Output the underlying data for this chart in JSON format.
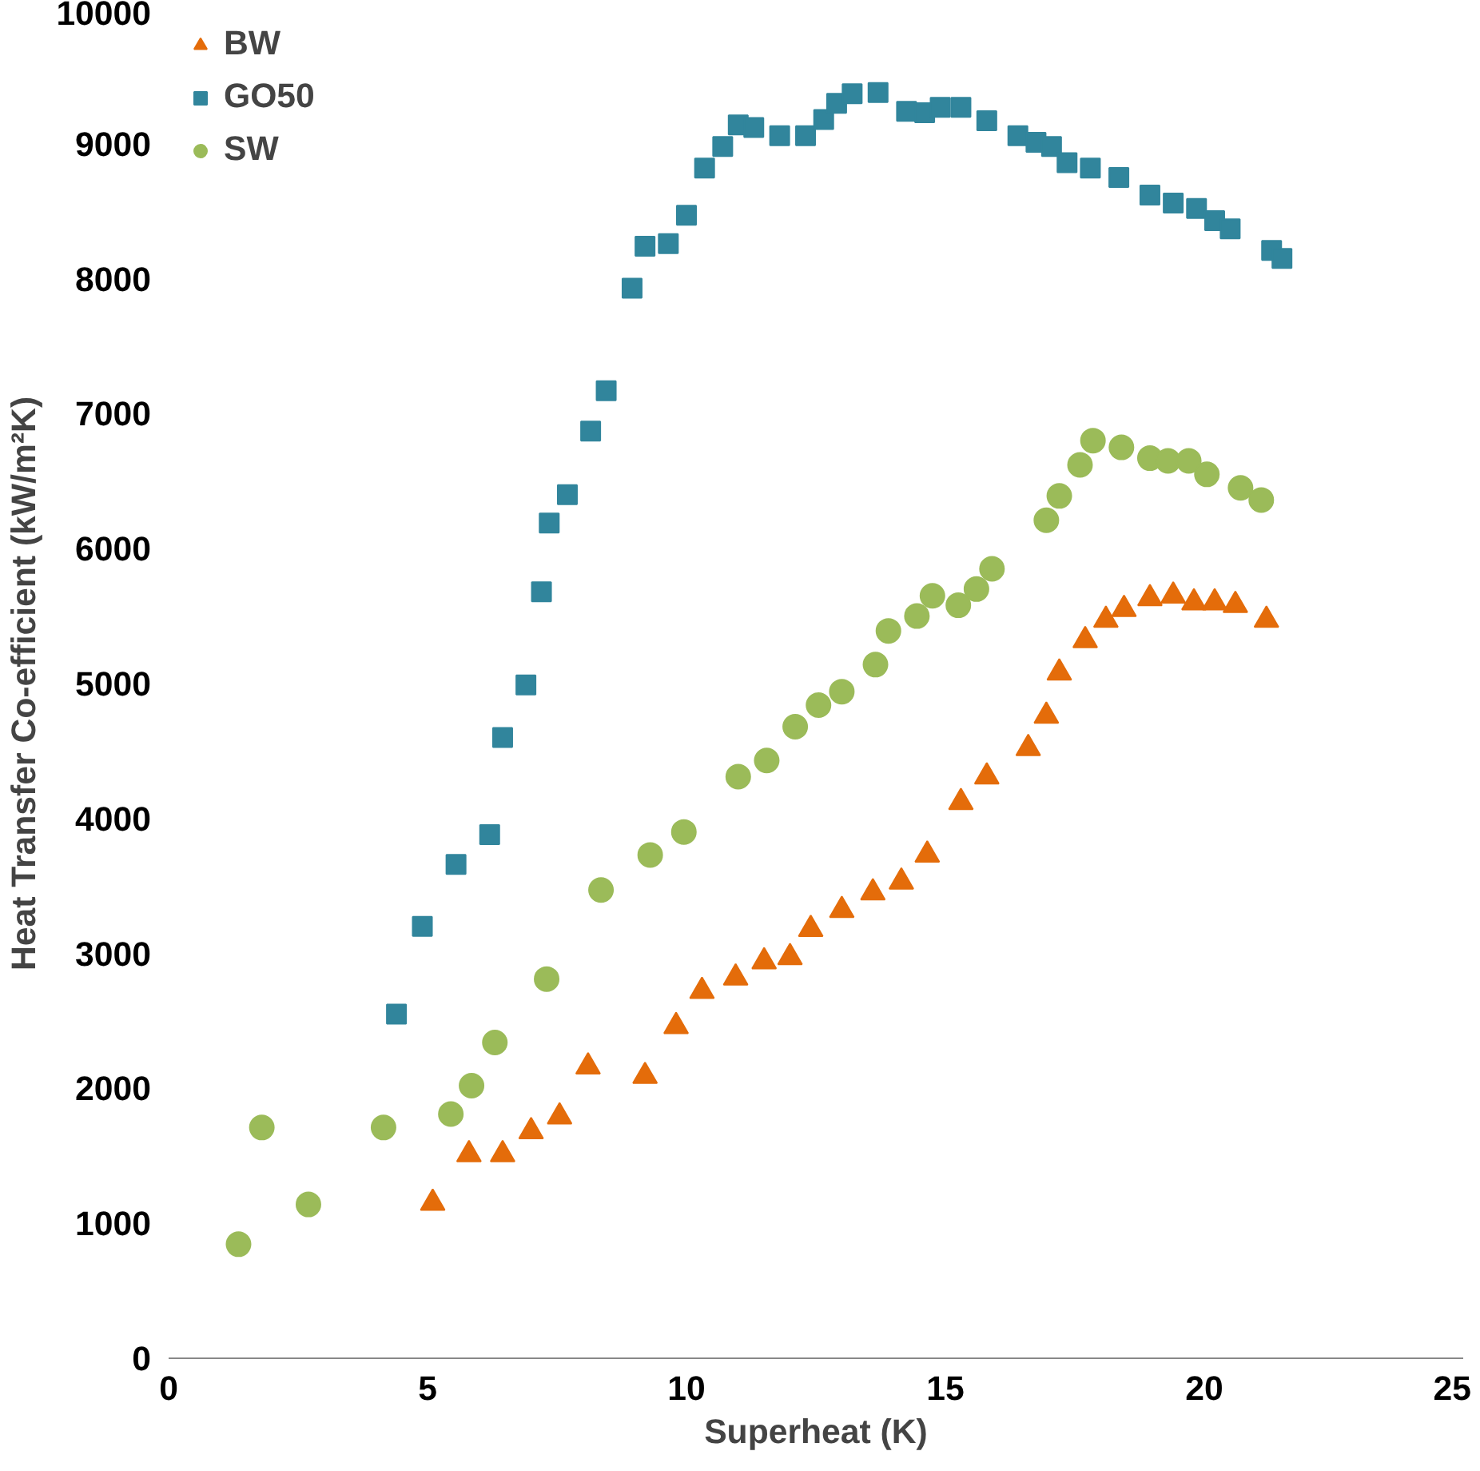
{
  "chart_data": {
    "type": "scatter",
    "xlabel": "Superheat (K)",
    "ylabel": "Heat Transfer Co-efficient (kW/m²K)",
    "xlim": [
      0,
      25
    ],
    "ylim": [
      0,
      10000
    ],
    "xticks": [
      0,
      5,
      10,
      15,
      20,
      25
    ],
    "yticks": [
      0,
      1000,
      2000,
      3000,
      4000,
      5000,
      6000,
      7000,
      8000,
      9000,
      10000
    ],
    "grid": false,
    "legend": "top left",
    "series": [
      {
        "name": "BW",
        "color": "#e46c0a",
        "marker": "triangle",
        "x": [
          5.1,
          5.8,
          6.45,
          7.0,
          7.55,
          8.1,
          9.2,
          9.8,
          10.3,
          10.95,
          11.5,
          12.0,
          12.4,
          13.0,
          13.6,
          14.15,
          14.65,
          15.3,
          15.8,
          16.6,
          16.95,
          17.2,
          17.7,
          18.1,
          18.45,
          18.95,
          19.4,
          19.8,
          20.2,
          20.6,
          21.2
        ],
        "values": [
          1150,
          1510,
          1510,
          1680,
          1790,
          2160,
          2090,
          2460,
          2720,
          2820,
          2940,
          2970,
          3180,
          3320,
          3450,
          3530,
          3730,
          4120,
          4310,
          4520,
          4760,
          5080,
          5320,
          5470,
          5550,
          5630,
          5650,
          5600,
          5600,
          5580,
          5470
        ]
      },
      {
        "name": "GO50",
        "color": "#31859c",
        "marker": "square",
        "x": [
          4.4,
          4.9,
          5.55,
          6.2,
          6.45,
          6.9,
          7.2,
          7.35,
          7.7,
          8.15,
          8.45,
          8.95,
          9.2,
          9.65,
          10.0,
          10.35,
          10.7,
          11.0,
          11.3,
          11.8,
          12.3,
          12.65,
          12.9,
          13.2,
          13.7,
          14.25,
          14.6,
          14.9,
          15.3,
          15.8,
          16.4,
          16.75,
          17.05,
          17.35,
          17.8,
          18.35,
          18.95,
          19.4,
          19.85,
          20.2,
          20.5,
          21.3,
          21.5
        ],
        "values": [
          2550,
          3200,
          3660,
          3880,
          4600,
          4990,
          5680,
          6190,
          6400,
          6870,
          7170,
          7930,
          8240,
          8260,
          8470,
          8820,
          8980,
          9140,
          9120,
          9060,
          9060,
          9180,
          9300,
          9370,
          9380,
          9240,
          9230,
          9270,
          9270,
          9170,
          9060,
          9010,
          8980,
          8860,
          8820,
          8750,
          8620,
          8560,
          8520,
          8430,
          8370,
          8210,
          8150
        ]
      },
      {
        "name": "SW",
        "color": "#9bbb59",
        "marker": "circle",
        "x": [
          1.35,
          1.8,
          2.7,
          4.15,
          5.45,
          5.85,
          6.3,
          7.3,
          8.35,
          9.3,
          9.95,
          11.0,
          11.55,
          12.1,
          12.55,
          13.0,
          13.65,
          13.9,
          14.45,
          14.75,
          15.25,
          15.6,
          15.9,
          16.95,
          17.2,
          17.6,
          17.85,
          18.4,
          18.95,
          19.3,
          19.7,
          20.05,
          20.7,
          21.1
        ],
        "values": [
          845,
          1710,
          1140,
          1710,
          1810,
          2020,
          2340,
          2810,
          3470,
          3730,
          3900,
          4310,
          4430,
          4680,
          4840,
          4940,
          5140,
          5390,
          5500,
          5650,
          5580,
          5700,
          5850,
          6210,
          6390,
          6620,
          6800,
          6750,
          6670,
          6650,
          6650,
          6550,
          6450,
          6360
        ]
      }
    ]
  }
}
